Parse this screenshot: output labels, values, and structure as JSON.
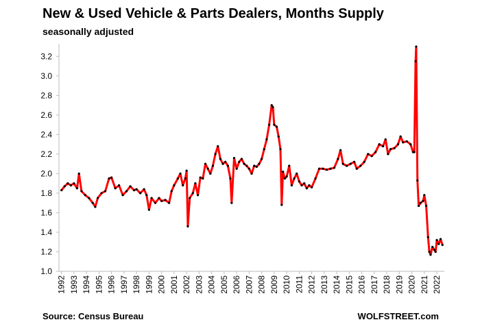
{
  "chart_data": {
    "type": "line",
    "title": "New & Used Vehicle & Parts Dealers, Months Supply",
    "subtitle": "seasonally adjusted",
    "source": "Source: Census Bureau",
    "credit": "WOLFSTREET.com",
    "x": [
      1992.0,
      1992.25,
      1992.5,
      1992.75,
      1993.0,
      1993.25,
      1993.4,
      1993.6,
      1993.9,
      1994.2,
      1994.5,
      1994.7,
      1994.9,
      1995.2,
      1995.5,
      1995.8,
      1996.0,
      1996.3,
      1996.6,
      1996.9,
      1997.2,
      1997.5,
      1997.8,
      1998.0,
      1998.3,
      1998.6,
      1998.8,
      1999.0,
      1999.2,
      1999.5,
      1999.8,
      2000.0,
      2000.3,
      2000.6,
      2000.8,
      2001.0,
      2001.3,
      2001.5,
      2001.7,
      2001.9,
      2002.0,
      2002.1,
      2002.25,
      2002.5,
      2002.7,
      2002.9,
      2003.1,
      2003.3,
      2003.5,
      2003.7,
      2003.9,
      2004.1,
      2004.3,
      2004.5,
      2004.7,
      2004.9,
      2005.1,
      2005.3,
      2005.5,
      2005.6,
      2005.8,
      2006.0,
      2006.2,
      2006.4,
      2006.6,
      2006.8,
      2007.0,
      2007.2,
      2007.4,
      2007.6,
      2007.8,
      2008.0,
      2008.2,
      2008.4,
      2008.6,
      2008.8,
      2008.9,
      2009.0,
      2009.2,
      2009.35,
      2009.5,
      2009.6,
      2009.7,
      2009.85,
      2010.0,
      2010.2,
      2010.4,
      2010.6,
      2010.8,
      2011.0,
      2011.2,
      2011.4,
      2011.6,
      2011.8,
      2012.0,
      2012.3,
      2012.6,
      2012.9,
      2013.2,
      2013.5,
      2013.8,
      2014.1,
      2014.3,
      2014.5,
      2014.8,
      2015.1,
      2015.4,
      2015.6,
      2015.9,
      2016.2,
      2016.5,
      2016.8,
      2017.1,
      2017.4,
      2017.7,
      2017.9,
      2018.1,
      2018.3,
      2018.6,
      2018.9,
      2019.1,
      2019.3,
      2019.6,
      2019.9,
      2020.1,
      2020.2,
      2020.3,
      2020.35,
      2020.45,
      2020.55,
      2020.7,
      2020.9,
      2021.0,
      2021.15,
      2021.3,
      2021.4,
      2021.5,
      2021.65,
      2021.8,
      2021.9,
      2022.0,
      2022.15,
      2022.3,
      2022.45
    ],
    "series": [
      {
        "color": "#ff0000",
        "values": [
          1.83,
          1.87,
          1.9,
          1.88,
          1.9,
          1.85,
          2.0,
          1.82,
          1.78,
          1.75,
          1.7,
          1.66,
          1.75,
          1.8,
          1.82,
          1.95,
          1.96,
          1.85,
          1.88,
          1.78,
          1.82,
          1.87,
          1.83,
          1.84,
          1.8,
          1.84,
          1.78,
          1.63,
          1.75,
          1.7,
          1.75,
          1.72,
          1.73,
          1.7,
          1.82,
          1.88,
          1.95,
          2.0,
          1.88,
          1.95,
          2.03,
          1.46,
          1.75,
          1.8,
          1.9,
          1.78,
          1.96,
          1.95,
          2.1,
          2.05,
          2.0,
          2.08,
          2.2,
          2.28,
          2.15,
          2.1,
          2.12,
          2.08,
          1.95,
          1.7,
          2.16,
          2.05,
          2.12,
          2.15,
          2.1,
          2.08,
          2.05,
          2.0,
          2.08,
          2.07,
          2.1,
          2.15,
          2.25,
          2.35,
          2.5,
          2.7,
          2.68,
          2.5,
          2.48,
          2.38,
          2.25,
          1.68,
          2.02,
          1.95,
          1.97,
          2.08,
          1.88,
          1.95,
          2.0,
          1.92,
          1.88,
          1.9,
          1.85,
          1.88,
          1.86,
          1.95,
          2.05,
          2.05,
          2.04,
          2.05,
          2.06,
          2.15,
          2.24,
          2.1,
          2.08,
          2.1,
          2.12,
          2.05,
          2.08,
          2.12,
          2.2,
          2.18,
          2.22,
          2.3,
          2.28,
          2.35,
          2.2,
          2.25,
          2.26,
          2.3,
          2.38,
          2.32,
          2.33,
          2.3,
          2.22,
          2.22,
          3.15,
          3.3,
          1.93,
          1.67,
          1.7,
          1.72,
          1.78,
          1.67,
          1.35,
          1.2,
          1.17,
          1.25,
          1.22,
          1.2,
          1.32,
          1.28,
          1.33,
          1.27
        ]
      }
    ],
    "marker_color": "#000000",
    "xlim": [
      1991.8,
      2022.6
    ],
    "xticks": [
      1992,
      1993,
      1994,
      1995,
      1996,
      1997,
      1998,
      1999,
      2000,
      2001,
      2002,
      2003,
      2004,
      2005,
      2006,
      2007,
      2008,
      2009,
      2010,
      2011,
      2012,
      2013,
      2014,
      2015,
      2016,
      2017,
      2018,
      2019,
      2020,
      2021,
      2022
    ],
    "ylim": [
      1.0,
      3.3
    ],
    "yticks": [
      {
        "value": 1,
        "label": "1.0"
      },
      1.2,
      1.4,
      1.6,
      1.8,
      {
        "value": 2,
        "label": "2.0"
      },
      2.2,
      2.4,
      2.6,
      2.8,
      {
        "value": 3,
        "label": "3.0"
      },
      3.2
    ],
    "grid": false
  }
}
